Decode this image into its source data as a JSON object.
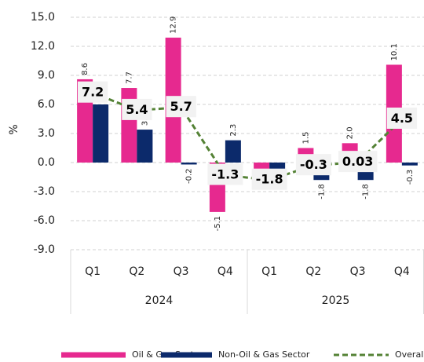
{
  "chart_data": {
    "type": "bar_line",
    "y_label": "%",
    "categories": [
      "Q1",
      "Q2",
      "Q3",
      "Q4",
      "Q1",
      "Q2",
      "Q3",
      "Q4"
    ],
    "category_groups": [
      "2024",
      "2025"
    ],
    "series": [
      {
        "name": "Oil & Gas Sector",
        "type": "bar",
        "color": "#e6298f",
        "values": [
          8.6,
          7.7,
          12.9,
          -5.1,
          -2.3,
          1.5,
          2.0,
          10.1
        ],
        "value_labels": [
          "8.6",
          "7.7",
          "12.9",
          "-5.1",
          null,
          "1.5",
          "2.0",
          "10.1"
        ]
      },
      {
        "name": "Non-Oil & Gas Sector",
        "type": "bar",
        "color": "#0c2a6b",
        "values": [
          6.0,
          3.4,
          -0.2,
          2.3,
          -1.5,
          -1.8,
          -1.8,
          -0.3
        ],
        "value_labels": [
          "6.0",
          "3.4",
          "-0.2",
          "2.3",
          null,
          "-1.8",
          "-1.8",
          "-0.3"
        ]
      },
      {
        "name": "Overall",
        "type": "line",
        "color": "#548235",
        "values": [
          7.2,
          5.4,
          5.7,
          -1.3,
          -1.8,
          -0.3,
          0.03,
          4.5
        ]
      }
    ],
    "ylim": [
      -9,
      15
    ],
    "yticks": [
      {
        "value": -9,
        "label": "-9.0"
      },
      {
        "value": -6,
        "label": "-6.0"
      },
      {
        "value": -3,
        "label": "-3.0"
      },
      {
        "value": 0,
        "label": "0.0"
      },
      {
        "value": 3,
        "label": "3.0"
      },
      {
        "value": 6,
        "label": "6.0"
      },
      {
        "value": 9,
        "label": "9.0"
      },
      {
        "value": 12,
        "label": "12.0"
      },
      {
        "value": 15,
        "label": "15.0"
      }
    ],
    "grid": true,
    "legend": "bottom"
  }
}
